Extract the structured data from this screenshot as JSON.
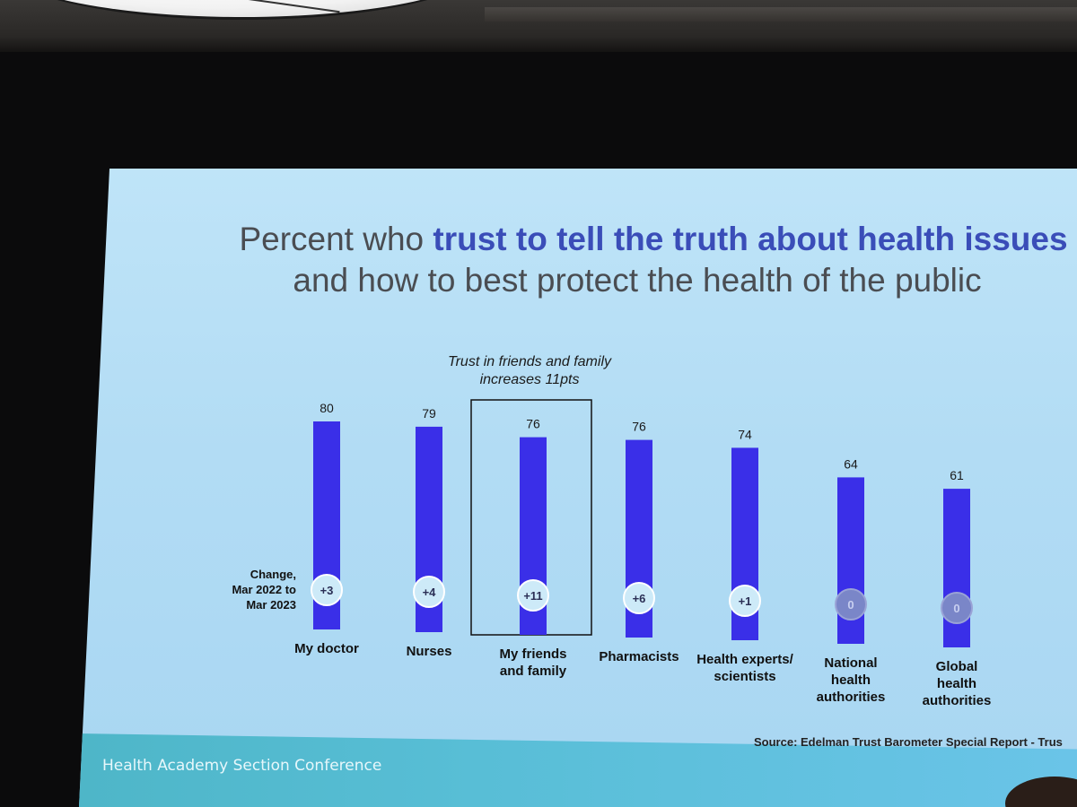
{
  "slide": {
    "title_pre": "Percent who ",
    "title_bold": "trust to tell the truth about health issues",
    "title_line2": "and how to best protect the health of the public",
    "annotation_line1": "Trust in friends and family",
    "annotation_line2": "increases 11pts",
    "change_label_line1": "Change,",
    "change_label_line2": "Mar 2022 to",
    "change_label_line3": "Mar 2023",
    "source": "Source: Edelman Trust Barometer Special Report - Trus",
    "footer": "Health Academy Section Conference"
  },
  "colors": {
    "bar": "#3a2fe8",
    "title_accent": "#3a4db8",
    "change_positive_fill": "#cdeaf8",
    "change_zero_fill": "#7a86c8"
  },
  "chart_data": {
    "type": "bar",
    "categories": [
      [
        "My doctor"
      ],
      [
        "Nurses"
      ],
      [
        "My friends",
        "and family"
      ],
      [
        "Pharmacists"
      ],
      [
        "Health experts/",
        "scientists"
      ],
      [
        "National",
        "health",
        "authorities"
      ],
      [
        "Global",
        "health",
        "authorities"
      ]
    ],
    "values": [
      80,
      79,
      76,
      76,
      74,
      64,
      61
    ],
    "change": [
      "+3",
      "+4",
      "+11",
      "+6",
      "+1",
      "0",
      "0"
    ],
    "highlighted_category_index": 2,
    "ylim": [
      0,
      80
    ],
    "grid": false,
    "legend": "none"
  }
}
